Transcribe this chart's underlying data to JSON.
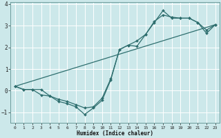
{
  "xlabel": "Humidex (Indice chaleur)",
  "xlim": [
    -0.5,
    23.5
  ],
  "ylim": [
    -1.5,
    4.1
  ],
  "xticks": [
    0,
    1,
    2,
    3,
    4,
    5,
    6,
    7,
    8,
    9,
    10,
    11,
    12,
    13,
    14,
    15,
    16,
    17,
    18,
    19,
    20,
    21,
    22,
    23
  ],
  "yticks": [
    -1,
    0,
    1,
    2,
    3,
    4
  ],
  "bg_color": "#cce8ea",
  "line_color": "#2e6e6e",
  "grid_color": "#ffffff",
  "lines": [
    {
      "x": [
        0,
        1,
        2,
        3,
        4,
        5,
        6,
        7,
        8,
        9,
        10,
        11,
        12,
        13,
        14,
        15,
        16,
        17,
        18,
        19,
        20,
        21,
        22,
        23
      ],
      "y": [
        0.2,
        0.05,
        0.05,
        0.05,
        -0.25,
        -0.5,
        -0.6,
        -0.75,
        -1.1,
        -0.8,
        -0.45,
        0.5,
        1.9,
        2.1,
        2.05,
        2.6,
        3.15,
        3.7,
        3.35,
        3.35,
        3.35,
        3.15,
        2.65,
        3.05
      ],
      "marker": true
    },
    {
      "x": [
        0,
        1,
        2,
        3,
        4,
        5,
        6,
        7,
        8,
        9,
        10,
        11,
        12,
        13,
        14,
        15,
        16,
        17,
        18,
        19,
        20,
        21,
        22,
        23
      ],
      "y": [
        0.2,
        0.05,
        0.05,
        -0.2,
        -0.25,
        -0.4,
        -0.5,
        -0.65,
        -0.8,
        -0.75,
        -0.35,
        0.55,
        1.9,
        2.1,
        2.3,
        2.6,
        3.2,
        3.5,
        3.4,
        3.35,
        3.35,
        3.15,
        2.8,
        3.05
      ],
      "marker": true
    },
    {
      "x": [
        0,
        23
      ],
      "y": [
        0.2,
        3.05
      ],
      "marker": false
    }
  ]
}
